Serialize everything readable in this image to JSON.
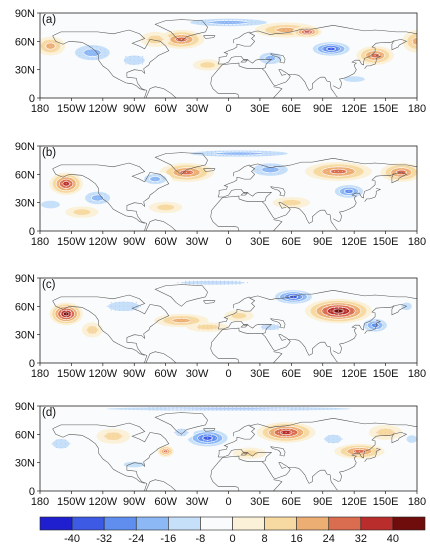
{
  "figure": {
    "panels": [
      {
        "label": "(a)",
        "anomalies": [
          {
            "lon": -45,
            "lat": 62,
            "value": 28,
            "rx": 22,
            "ry": 10
          },
          {
            "lon": 0,
            "lat": 80,
            "value": -18,
            "rx": 55,
            "ry": 6
          },
          {
            "lon": 55,
            "lat": 72,
            "value": 18,
            "rx": 30,
            "ry": 8
          },
          {
            "lon": 75,
            "lat": 70,
            "value": 34,
            "rx": 14,
            "ry": 6
          },
          {
            "lon": 40,
            "lat": 42,
            "value": -22,
            "rx": 16,
            "ry": 9
          },
          {
            "lon": 98,
            "lat": 52,
            "value": -38,
            "rx": 22,
            "ry": 9
          },
          {
            "lon": 140,
            "lat": 45,
            "value": 30,
            "rx": 18,
            "ry": 10
          },
          {
            "lon": 180,
            "lat": 60,
            "value": 24,
            "rx": 14,
            "ry": 12
          },
          {
            "lon": -170,
            "lat": 55,
            "value": 20,
            "rx": 14,
            "ry": 10
          },
          {
            "lon": -130,
            "lat": 48,
            "value": -22,
            "rx": 25,
            "ry": 12
          },
          {
            "lon": -90,
            "lat": 40,
            "value": -14,
            "rx": 20,
            "ry": 10
          },
          {
            "lon": -70,
            "lat": 62,
            "value": 14,
            "rx": 14,
            "ry": 8
          },
          {
            "lon": -20,
            "lat": 35,
            "value": 10,
            "rx": 14,
            "ry": 6
          },
          {
            "lon": 120,
            "lat": 20,
            "value": -10,
            "rx": 20,
            "ry": 6
          }
        ]
      },
      {
        "label": "(b)",
        "anomalies": [
          {
            "lon": -155,
            "lat": 50,
            "value": 34,
            "rx": 16,
            "ry": 12
          },
          {
            "lon": -40,
            "lat": 62,
            "value": 30,
            "rx": 26,
            "ry": 10
          },
          {
            "lon": 105,
            "lat": 63,
            "value": 32,
            "rx": 32,
            "ry": 10
          },
          {
            "lon": 165,
            "lat": 62,
            "value": 26,
            "rx": 20,
            "ry": 10
          },
          {
            "lon": 10,
            "lat": 82,
            "value": -22,
            "rx": 70,
            "ry": 5
          },
          {
            "lon": 40,
            "lat": 65,
            "value": -18,
            "rx": 25,
            "ry": 10
          },
          {
            "lon": 115,
            "lat": 42,
            "value": -30,
            "rx": 18,
            "ry": 9
          },
          {
            "lon": -125,
            "lat": 35,
            "value": -22,
            "rx": 18,
            "ry": 10
          },
          {
            "lon": -70,
            "lat": 55,
            "value": -18,
            "rx": 16,
            "ry": 8
          },
          {
            "lon": -170,
            "lat": 28,
            "value": -12,
            "rx": 18,
            "ry": 8
          },
          {
            "lon": -140,
            "lat": 20,
            "value": 12,
            "rx": 16,
            "ry": 6
          },
          {
            "lon": -60,
            "lat": 25,
            "value": 10,
            "rx": 16,
            "ry": 6
          },
          {
            "lon": 60,
            "lat": 30,
            "value": 10,
            "rx": 18,
            "ry": 6
          }
        ]
      },
      {
        "label": "(c)",
        "anomalies": [
          {
            "lon": -155,
            "lat": 52,
            "value": 44,
            "rx": 16,
            "ry": 12
          },
          {
            "lon": 105,
            "lat": 55,
            "value": 42,
            "rx": 32,
            "ry": 13
          },
          {
            "lon": 62,
            "lat": 70,
            "value": -36,
            "rx": 22,
            "ry": 9
          },
          {
            "lon": 140,
            "lat": 40,
            "value": -32,
            "rx": 15,
            "ry": 9
          },
          {
            "lon": -100,
            "lat": 60,
            "value": -14,
            "rx": 30,
            "ry": 10
          },
          {
            "lon": -15,
            "lat": 85,
            "value": -14,
            "rx": 60,
            "ry": 4
          },
          {
            "lon": -45,
            "lat": 45,
            "value": 18,
            "rx": 26,
            "ry": 7
          },
          {
            "lon": -20,
            "lat": 38,
            "value": 14,
            "rx": 20,
            "ry": 5
          },
          {
            "lon": 40,
            "lat": 38,
            "value": -14,
            "rx": 18,
            "ry": 6
          },
          {
            "lon": -130,
            "lat": 35,
            "value": 14,
            "rx": 10,
            "ry": 8
          },
          {
            "lon": 10,
            "lat": 50,
            "value": 10,
            "rx": 14,
            "ry": 6
          },
          {
            "lon": 170,
            "lat": 60,
            "value": -12,
            "rx": 10,
            "ry": 8
          }
        ]
      },
      {
        "label": "(d)",
        "anomalies": [
          {
            "lon": -20,
            "lat": 56,
            "value": -40,
            "rx": 24,
            "ry": 11
          },
          {
            "lon": 55,
            "lat": 62,
            "value": 38,
            "rx": 28,
            "ry": 11
          },
          {
            "lon": 125,
            "lat": 42,
            "value": 30,
            "rx": 24,
            "ry": 8
          },
          {
            "lon": 0,
            "lat": 87,
            "value": -22,
            "rx": 175,
            "ry": 3
          },
          {
            "lon": -160,
            "lat": 50,
            "value": -14,
            "rx": 16,
            "ry": 10
          },
          {
            "lon": -110,
            "lat": 58,
            "value": 14,
            "rx": 16,
            "ry": 8
          },
          {
            "lon": -60,
            "lat": 42,
            "value": 26,
            "rx": 8,
            "ry": 6
          },
          {
            "lon": -45,
            "lat": 62,
            "value": -14,
            "rx": 12,
            "ry": 8
          },
          {
            "lon": 20,
            "lat": 40,
            "value": 12,
            "rx": 16,
            "ry": 6
          },
          {
            "lon": 100,
            "lat": 55,
            "value": -14,
            "rx": 16,
            "ry": 9
          },
          {
            "lon": 150,
            "lat": 62,
            "value": 14,
            "rx": 16,
            "ry": 8
          },
          {
            "lon": -90,
            "lat": 28,
            "value": -10,
            "rx": 20,
            "ry": 6
          },
          {
            "lon": 175,
            "lat": 55,
            "value": -12,
            "rx": 10,
            "ry": 8
          }
        ]
      }
    ],
    "x_ticks": [
      "180",
      "150W",
      "120W",
      "90W",
      "60W",
      "30W",
      "0",
      "30E",
      "60E",
      "90E",
      "120E",
      "150E",
      "180"
    ],
    "y_ticks": [
      "90N",
      "60N",
      "30N",
      "0"
    ],
    "colorbar": {
      "labels": [
        "-40",
        "-32",
        "-24",
        "-16",
        "-8",
        "0",
        "8",
        "16",
        "24",
        "32",
        "40"
      ],
      "bounds": [
        -40,
        -32,
        -24,
        -16,
        -8,
        0,
        8,
        16,
        24,
        32,
        40
      ],
      "colors": [
        "#1f1fcf",
        "#3c5ae4",
        "#5f8eef",
        "#8cb8f5",
        "#c7e0fa",
        "#fafbfc",
        "#fbf1d8",
        "#f7d9a2",
        "#ecae72",
        "#da6c50",
        "#b92d2c",
        "#6f0c0c"
      ]
    }
  }
}
